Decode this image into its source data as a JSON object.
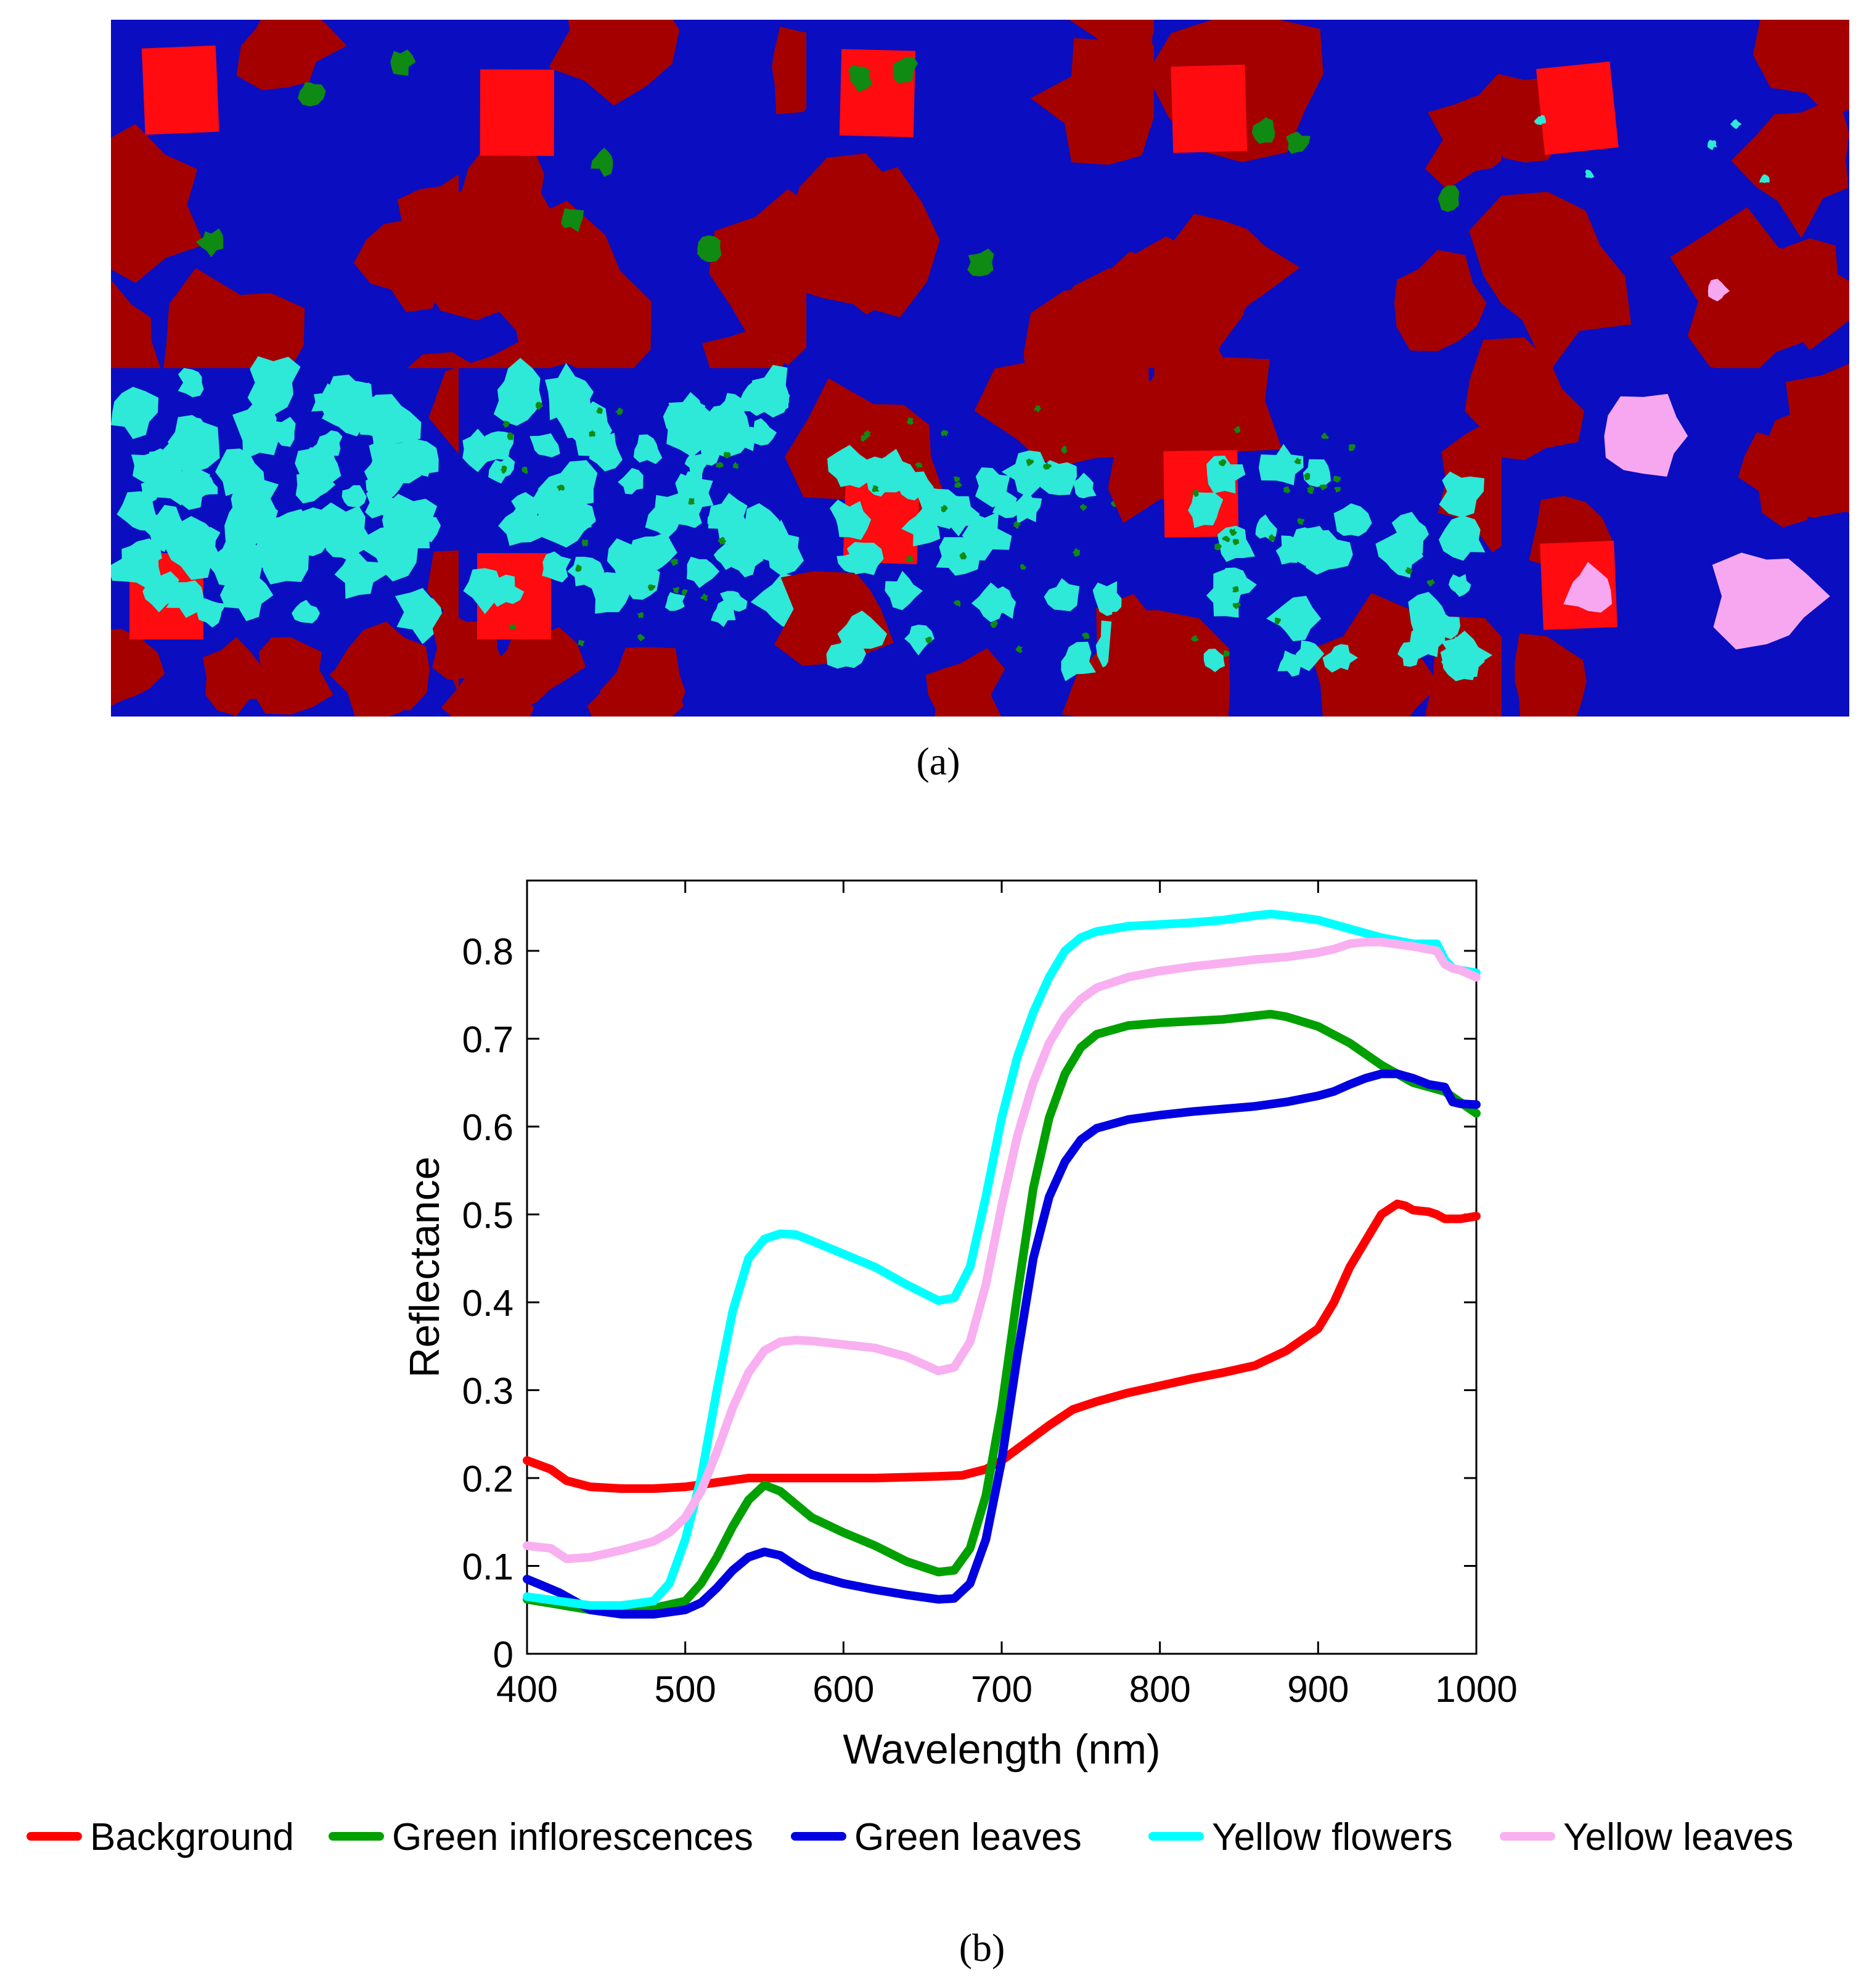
{
  "captions": {
    "a": "(a)",
    "b": "(b)"
  },
  "class_colors": {
    "background_dark": "#a50000",
    "background_bright": "#ff0b10",
    "green_leaves": "#0a0ec0",
    "green_inflorescences": "#0f8a12",
    "yellow_flowers": "#2ee8d8",
    "yellow_leaves": "#f6a7f0"
  },
  "segmentation_tiles": [
    {
      "row": 0,
      "col": 0,
      "dominant": "green_leaves",
      "contains": [
        "background_dark",
        "background_bright",
        "green_inflorescences"
      ]
    },
    {
      "row": 0,
      "col": 1,
      "dominant": "green_leaves",
      "contains": [
        "background_dark",
        "background_bright",
        "green_inflorescences"
      ]
    },
    {
      "row": 0,
      "col": 2,
      "dominant": "green_leaves",
      "contains": [
        "background_dark",
        "background_bright",
        "green_inflorescences"
      ]
    },
    {
      "row": 0,
      "col": 3,
      "dominant": "green_leaves",
      "contains": [
        "background_dark",
        "background_bright",
        "green_inflorescences"
      ]
    },
    {
      "row": 0,
      "col": 4,
      "dominant": "green_leaves",
      "contains": [
        "background_dark",
        "background_bright",
        "yellow_flowers",
        "yellow_leaves"
      ]
    },
    {
      "row": 1,
      "col": 0,
      "dominant": "yellow_flowers",
      "contains": [
        "green_leaves",
        "background_dark",
        "background_bright"
      ]
    },
    {
      "row": 1,
      "col": 1,
      "dominant": "yellow_flowers",
      "contains": [
        "green_leaves",
        "green_inflorescences",
        "background_dark",
        "background_bright"
      ]
    },
    {
      "row": 1,
      "col": 2,
      "dominant": "green_leaves",
      "contains": [
        "yellow_flowers",
        "background_dark",
        "background_bright",
        "green_inflorescences"
      ]
    },
    {
      "row": 1,
      "col": 3,
      "dominant": "green_leaves",
      "contains": [
        "yellow_flowers",
        "background_dark",
        "background_bright",
        "green_inflorescences"
      ]
    },
    {
      "row": 1,
      "col": 4,
      "dominant": "green_leaves",
      "contains": [
        "yellow_leaves",
        "background_dark",
        "background_bright"
      ]
    }
  ],
  "chart_data": {
    "type": "line",
    "title": "",
    "xlabel": "Wavelength (nm)",
    "ylabel": "Reflectance",
    "xlim": [
      400,
      1000
    ],
    "ylim": [
      0,
      0.88
    ],
    "xticks": [
      "400",
      "500",
      "600",
      "700",
      "800",
      "900",
      "1000"
    ],
    "yticks": [
      "0",
      "0.1",
      "0.2",
      "0.3",
      "0.4",
      "0.5",
      "0.6",
      "0.7",
      "0.8"
    ],
    "grid": false,
    "legend_position": "bottom",
    "series": [
      {
        "name": "Background",
        "color": "#ff0000",
        "x": [
          400,
          415,
          425,
          440,
          460,
          480,
          500,
          520,
          540,
          560,
          580,
          600,
          620,
          640,
          660,
          675,
          690,
          700,
          715,
          730,
          745,
          760,
          780,
          800,
          820,
          840,
          860,
          880,
          900,
          910,
          920,
          930,
          940,
          950,
          955,
          960,
          970,
          975,
          980,
          990,
          1000
        ],
        "y": [
          0.22,
          0.21,
          0.197,
          0.19,
          0.188,
          0.188,
          0.19,
          0.195,
          0.2,
          0.2,
          0.2,
          0.2,
          0.2,
          0.201,
          0.202,
          0.203,
          0.21,
          0.22,
          0.24,
          0.26,
          0.278,
          0.287,
          0.297,
          0.305,
          0.313,
          0.32,
          0.328,
          0.345,
          0.37,
          0.4,
          0.44,
          0.47,
          0.5,
          0.512,
          0.51,
          0.505,
          0.503,
          0.5,
          0.495,
          0.495,
          0.498
        ]
      },
      {
        "name": "Green inflorescences",
        "color": "#00a000",
        "x": [
          400,
          420,
          440,
          460,
          480,
          500,
          510,
          520,
          530,
          540,
          550,
          560,
          570,
          580,
          600,
          620,
          640,
          660,
          670,
          680,
          690,
          700,
          710,
          720,
          730,
          740,
          750,
          760,
          780,
          800,
          820,
          840,
          860,
          870,
          880,
          900,
          920,
          940,
          960,
          980,
          1000
        ],
        "y": [
          0.062,
          0.056,
          0.05,
          0.05,
          0.052,
          0.06,
          0.08,
          0.11,
          0.145,
          0.175,
          0.192,
          0.185,
          0.17,
          0.155,
          0.138,
          0.123,
          0.105,
          0.093,
          0.095,
          0.12,
          0.18,
          0.28,
          0.41,
          0.53,
          0.61,
          0.66,
          0.69,
          0.705,
          0.715,
          0.718,
          0.72,
          0.722,
          0.726,
          0.728,
          0.725,
          0.714,
          0.695,
          0.67,
          0.65,
          0.64,
          0.615
        ]
      },
      {
        "name": "Green leaves",
        "color": "#0000e0",
        "x": [
          400,
          420,
          440,
          460,
          480,
          500,
          510,
          520,
          530,
          540,
          550,
          560,
          570,
          580,
          600,
          620,
          640,
          660,
          670,
          680,
          690,
          700,
          710,
          720,
          730,
          740,
          750,
          760,
          780,
          800,
          820,
          840,
          860,
          880,
          900,
          910,
          920,
          930,
          940,
          950,
          960,
          970,
          980,
          985,
          990,
          1000
        ],
        "y": [
          0.085,
          0.07,
          0.05,
          0.045,
          0.045,
          0.05,
          0.058,
          0.075,
          0.095,
          0.11,
          0.116,
          0.112,
          0.1,
          0.09,
          0.08,
          0.073,
          0.067,
          0.062,
          0.063,
          0.08,
          0.13,
          0.22,
          0.34,
          0.45,
          0.52,
          0.56,
          0.585,
          0.598,
          0.608,
          0.613,
          0.617,
          0.62,
          0.623,
          0.628,
          0.635,
          0.64,
          0.648,
          0.655,
          0.66,
          0.66,
          0.655,
          0.648,
          0.645,
          0.628,
          0.626,
          0.625
        ]
      },
      {
        "name": "Yellow flowers",
        "color": "#00ffff",
        "x": [
          400,
          420,
          440,
          460,
          480,
          490,
          500,
          510,
          520,
          530,
          540,
          550,
          560,
          570,
          580,
          600,
          620,
          640,
          660,
          670,
          680,
          690,
          700,
          710,
          720,
          730,
          740,
          750,
          760,
          780,
          800,
          820,
          840,
          860,
          870,
          880,
          900,
          920,
          940,
          960,
          975,
          980,
          985,
          990,
          1000
        ],
        "y": [
          0.065,
          0.06,
          0.055,
          0.055,
          0.06,
          0.08,
          0.13,
          0.2,
          0.3,
          0.39,
          0.45,
          0.472,
          0.478,
          0.477,
          0.47,
          0.455,
          0.44,
          0.42,
          0.402,
          0.405,
          0.44,
          0.52,
          0.61,
          0.68,
          0.73,
          0.77,
          0.8,
          0.815,
          0.822,
          0.828,
          0.83,
          0.832,
          0.835,
          0.84,
          0.842,
          0.84,
          0.835,
          0.825,
          0.815,
          0.808,
          0.808,
          0.79,
          0.78,
          0.778,
          0.775
        ]
      },
      {
        "name": "Yellow leaves",
        "color": "#f8b0f0",
        "x": [
          400,
          415,
          425,
          440,
          460,
          480,
          490,
          500,
          510,
          520,
          530,
          540,
          550,
          560,
          570,
          580,
          600,
          620,
          640,
          660,
          670,
          680,
          690,
          700,
          710,
          720,
          730,
          740,
          750,
          760,
          780,
          800,
          820,
          840,
          860,
          880,
          900,
          910,
          920,
          930,
          940,
          960,
          975,
          980,
          985,
          990,
          1000
        ],
        "y": [
          0.123,
          0.12,
          0.108,
          0.11,
          0.118,
          0.128,
          0.138,
          0.155,
          0.185,
          0.23,
          0.28,
          0.32,
          0.345,
          0.355,
          0.357,
          0.356,
          0.352,
          0.348,
          0.338,
          0.322,
          0.326,
          0.355,
          0.42,
          0.51,
          0.59,
          0.65,
          0.695,
          0.725,
          0.745,
          0.758,
          0.77,
          0.777,
          0.782,
          0.786,
          0.79,
          0.793,
          0.798,
          0.802,
          0.808,
          0.81,
          0.81,
          0.805,
          0.8,
          0.785,
          0.78,
          0.778,
          0.77
        ]
      }
    ]
  }
}
